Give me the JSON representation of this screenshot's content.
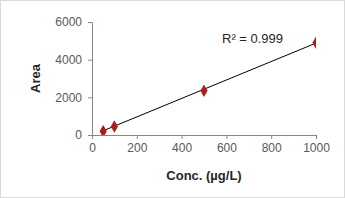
{
  "chart_data": {
    "type": "scatter",
    "x_label": "Conc. (µg/L)",
    "y_label": "Area",
    "annotations": [
      "R² = 0.999"
    ],
    "xlim": [
      0,
      1000
    ],
    "xticks": [
      0,
      200,
      400,
      600,
      800,
      1000
    ],
    "ylim": [
      0,
      6000
    ],
    "yticks": [
      0,
      2000,
      4000,
      6000
    ],
    "grid": false,
    "series": [
      {
        "type": "scatter",
        "marker": "diamond",
        "color": "#b01c1c",
        "x": [
          50,
          100,
          500,
          1000
        ],
        "values": [
          200,
          450,
          2350,
          4900
        ]
      },
      {
        "type": "line",
        "line_style": "solid",
        "color": "#000000",
        "x": [
          50,
          1000
        ],
        "values": [
          225,
          4880
        ]
      }
    ]
  }
}
